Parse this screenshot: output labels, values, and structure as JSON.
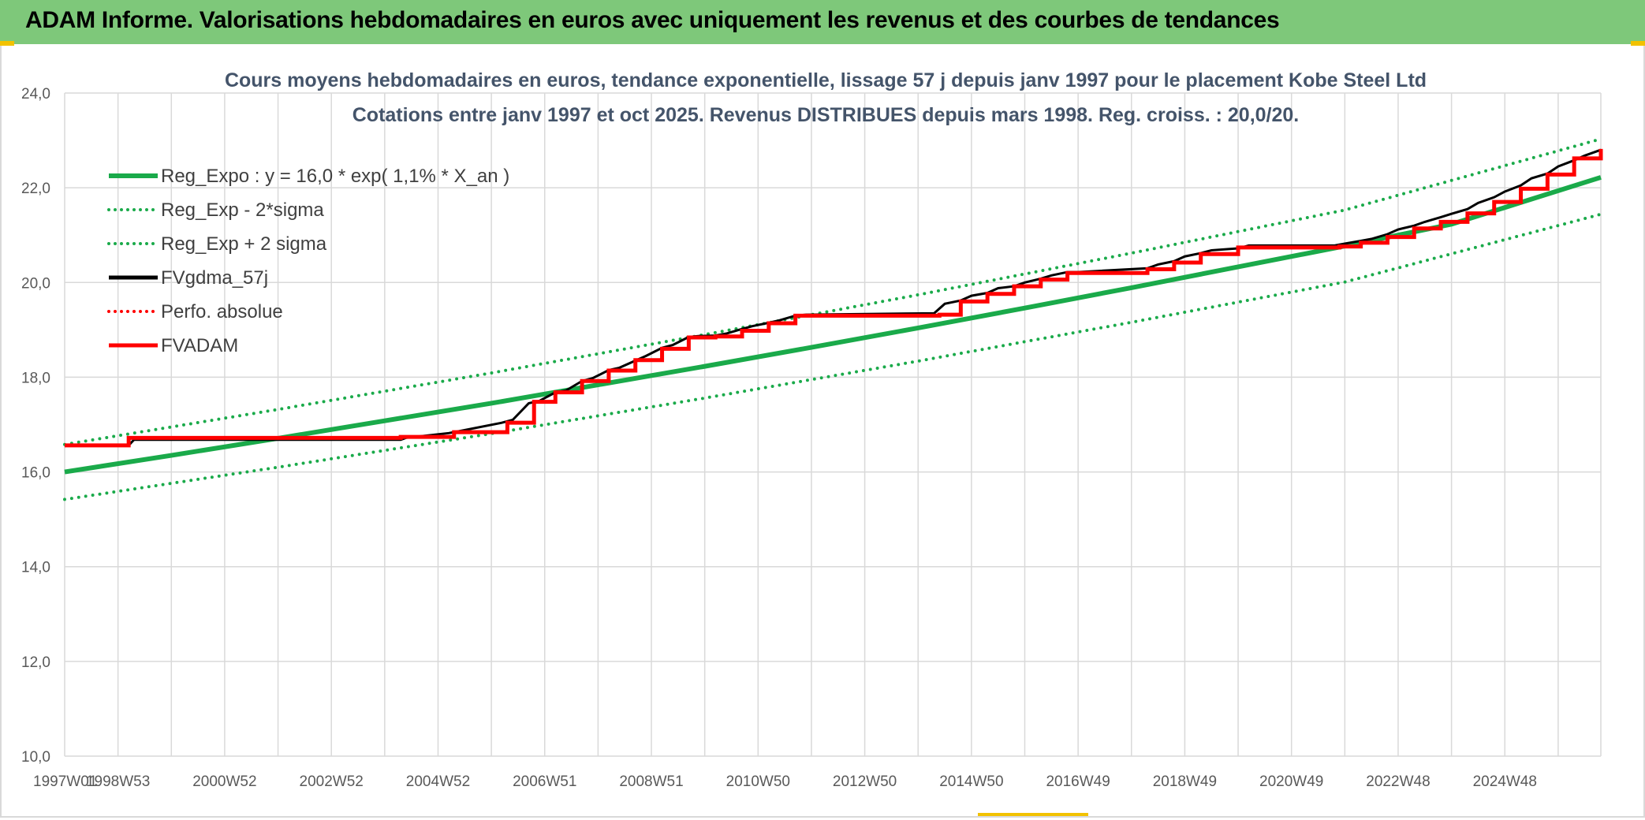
{
  "banner": {
    "title": "ADAM Informe. Valorisations hebdomadaires en euros avec uniquement les revenus et des courbes de tendances"
  },
  "colors": {
    "banner_bg": "#7ec87a",
    "reg_green": "#1aaa4a",
    "fvadam_red": "#ff0000",
    "fvgdma_black": "#000000",
    "grid": "#d9d9d9",
    "title_text": "#44546a"
  },
  "chart_data": {
    "type": "line",
    "title": "Cours moyens hebdomadaires en euros, tendance exponentielle, lissage 57 j depuis janv 1997 pour le placement Kobe Steel Ltd",
    "subtitle": "Cotations entre janv 1997 et oct 2025. Revenus DISTRIBUES depuis mars 1998. Reg. croiss. : 20,0/20.",
    "xlabel": "",
    "ylabel": "",
    "ylim": [
      10.0,
      24.0
    ],
    "xlim": [
      1997.0,
      2025.8
    ],
    "grid": true,
    "legend_position": "top-left",
    "y_ticks": [
      "10,0",
      "12,0",
      "14,0",
      "16,0",
      "18,0",
      "20,0",
      "22,0",
      "24,0"
    ],
    "x_ticks": [
      {
        "label": "1997W01",
        "x": 1997.0
      },
      {
        "label": "1998W53",
        "x": 1998.0
      },
      {
        "label": "2000W52",
        "x": 2000.0
      },
      {
        "label": "2002W52",
        "x": 2002.0
      },
      {
        "label": "2004W52",
        "x": 2004.0
      },
      {
        "label": "2006W51",
        "x": 2006.0
      },
      {
        "label": "2008W51",
        "x": 2008.0
      },
      {
        "label": "2010W50",
        "x": 2010.0
      },
      {
        "label": "2012W50",
        "x": 2012.0
      },
      {
        "label": "2014W50",
        "x": 2014.0
      },
      {
        "label": "2016W49",
        "x": 2016.0
      },
      {
        "label": "2018W49",
        "x": 2018.0
      },
      {
        "label": "2020W49",
        "x": 2020.0
      },
      {
        "label": "2022W48",
        "x": 2022.0
      },
      {
        "label": "2024W48",
        "x": 2024.0
      }
    ],
    "series": [
      {
        "name": "Reg_Expo : y = 16,0 * exp( 1,1% *  X_an )",
        "kind": "reg",
        "style": "solid",
        "color": "#1aaa4a",
        "width": 6,
        "x": [
          1997.0,
          1999.0,
          2001.0,
          2003.0,
          2005.0,
          2007.0,
          2009.0,
          2011.0,
          2013.0,
          2015.0,
          2017.0,
          2019.0,
          2021.0,
          2023.0,
          2025.8
        ],
        "y": [
          16.0,
          16.35,
          16.71,
          17.08,
          17.45,
          17.84,
          18.23,
          18.63,
          19.04,
          19.46,
          19.89,
          20.33,
          20.77,
          21.23,
          22.22
        ]
      },
      {
        "name": "Reg_Exp - 2*sigma",
        "kind": "reg",
        "style": "dotted",
        "color": "#1aaa4a",
        "width": 4,
        "x": [
          1997.0,
          2001.0,
          2005.0,
          2009.0,
          2013.0,
          2017.0,
          2021.0,
          2025.8
        ],
        "y": [
          15.42,
          16.1,
          16.81,
          17.56,
          18.34,
          19.16,
          20.01,
          21.44
        ]
      },
      {
        "name": "Reg_Exp + 2 sigma",
        "kind": "reg",
        "style": "dotted",
        "color": "#1aaa4a",
        "width": 4,
        "x": [
          1997.0,
          2001.0,
          2005.0,
          2009.0,
          2013.0,
          2017.0,
          2021.0,
          2025.8
        ],
        "y": [
          16.58,
          17.32,
          18.09,
          18.9,
          19.74,
          20.62,
          21.53,
          23.03
        ]
      },
      {
        "name": "FVgdma_57j",
        "kind": "data",
        "style": "solid",
        "color": "#000000",
        "width": 3,
        "x": [
          1997.0,
          1998.2,
          1998.3,
          2003.3,
          2003.4,
          2004.2,
          2004.3,
          2005.2,
          2005.4,
          2005.7,
          2005.9,
          2006.2,
          2006.4,
          2006.7,
          2006.9,
          2007.2,
          2007.4,
          2007.7,
          2007.9,
          2008.2,
          2008.4,
          2008.7,
          2008.9,
          2009.2,
          2009.4,
          2009.7,
          2009.9,
          2010.2,
          2010.4,
          2010.7,
          2010.9,
          2013.3,
          2013.5,
          2013.8,
          2014.0,
          2014.3,
          2014.5,
          2014.8,
          2015.0,
          2015.3,
          2015.5,
          2015.8,
          2016.0,
          2017.3,
          2017.5,
          2017.8,
          2018.0,
          2018.3,
          2018.5,
          2019.0,
          2019.2,
          2020.8,
          2021.0,
          2021.3,
          2021.5,
          2021.8,
          2022.0,
          2022.3,
          2022.5,
          2022.8,
          2023.0,
          2023.3,
          2023.5,
          2023.8,
          2024.0,
          2024.3,
          2024.5,
          2024.8,
          2025.0,
          2025.3,
          2025.5,
          2025.8
        ],
        "y": [
          16.56,
          16.56,
          16.68,
          16.68,
          16.72,
          16.82,
          16.84,
          17.04,
          17.1,
          17.45,
          17.5,
          17.68,
          17.72,
          17.92,
          17.98,
          18.15,
          18.2,
          18.35,
          18.45,
          18.62,
          18.68,
          18.85,
          18.87,
          18.88,
          18.92,
          19.02,
          19.08,
          19.15,
          19.2,
          19.3,
          19.32,
          19.35,
          19.55,
          19.62,
          19.72,
          19.78,
          19.88,
          19.92,
          20.0,
          20.08,
          20.15,
          20.22,
          20.22,
          20.3,
          20.38,
          20.45,
          20.55,
          20.62,
          20.68,
          20.72,
          20.78,
          20.78,
          20.82,
          20.88,
          20.92,
          21.02,
          21.12,
          21.2,
          21.28,
          21.38,
          21.45,
          21.55,
          21.68,
          21.8,
          21.92,
          22.05,
          22.2,
          22.3,
          22.45,
          22.58,
          22.68,
          22.8
        ]
      },
      {
        "name": "Perfo. absolue",
        "kind": "data",
        "style": "dotted",
        "color": "#ff0000",
        "width": 3,
        "x": [],
        "y": []
      },
      {
        "name": "FVADAM",
        "kind": "data",
        "style": "solid",
        "color": "#ff0000",
        "width": 5,
        "step": true,
        "x": [
          1997.0,
          1998.2,
          2003.3,
          2004.3,
          2005.3,
          2005.8,
          2006.2,
          2006.7,
          2007.2,
          2007.7,
          2008.2,
          2008.7,
          2009.2,
          2009.7,
          2010.2,
          2010.7,
          2013.4,
          2013.8,
          2014.3,
          2014.8,
          2015.3,
          2015.8,
          2017.3,
          2017.8,
          2018.3,
          2019.0,
          2020.9,
          2021.3,
          2021.8,
          2022.3,
          2022.8,
          2023.3,
          2023.8,
          2024.3,
          2024.8,
          2025.3,
          2025.8
        ],
        "y": [
          16.56,
          16.72,
          16.74,
          16.84,
          17.04,
          17.48,
          17.68,
          17.92,
          18.14,
          18.36,
          18.6,
          18.84,
          18.86,
          18.98,
          19.14,
          19.3,
          19.32,
          19.6,
          19.76,
          19.92,
          20.06,
          20.2,
          20.28,
          20.42,
          20.6,
          20.74,
          20.76,
          20.84,
          20.96,
          21.14,
          21.28,
          21.46,
          21.7,
          21.98,
          22.28,
          22.62,
          22.82
        ]
      }
    ]
  }
}
